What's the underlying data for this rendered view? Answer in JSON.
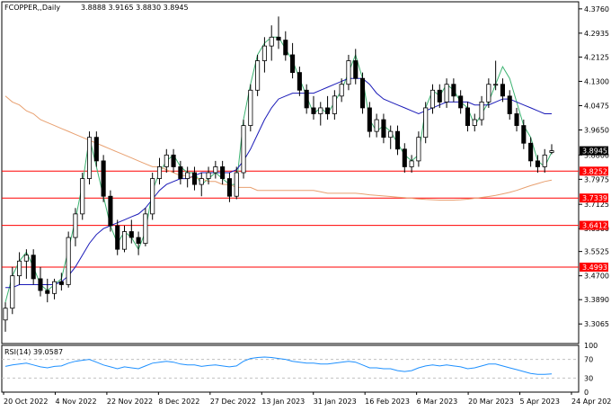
{
  "header": {
    "symbol_label": "FCOPPER,,Daily",
    "ohlc_label": "3.8888 3.9165 3.8830 3.8945"
  },
  "rsi": {
    "label": "RSI(14) 39.0587",
    "ticks": [
      100,
      70,
      30,
      0
    ],
    "levels": [
      70,
      30
    ],
    "color": "#1e90ff"
  },
  "chart_data": {
    "type": "candlestick",
    "title": "",
    "ylim": [
      3.24,
      4.4
    ],
    "y_ticks": [
      "4.3760",
      "4.2935",
      "4.2125",
      "4.1300",
      "4.0475",
      "3.9650",
      "3.8800",
      "3.7975",
      "3.7125",
      "3.6300",
      "3.5525",
      "3.4700",
      "3.3890",
      "3.3065"
    ],
    "x_labels": [
      "20 Oct 2022",
      "4 Nov 2022",
      "22 Nov 2022",
      "8 Dec 2022",
      "27 Dec 2022",
      "13 Jan 2023",
      "31 Jan 2023",
      "16 Feb 2023",
      "6 Mar 2023",
      "20 Mar 2023",
      "5 Apr 2023",
      "24 Apr 2023"
    ],
    "current_price": {
      "value": 3.8945,
      "label": "3.8945"
    },
    "horizontal_levels": [
      {
        "value": 3.8252,
        "label": "3.8252",
        "color": "#ff0000"
      },
      {
        "value": 3.7339,
        "label": "3.7339",
        "color": "#ff0000"
      },
      {
        "value": 3.6412,
        "label": "3.6412",
        "color": "#ff0000"
      },
      {
        "value": 3.4993,
        "label": "3.4993",
        "color": "#ff0000"
      }
    ],
    "series": [
      {
        "values": [
          3.38,
          3.47,
          3.52,
          3.55,
          3.5,
          3.44,
          3.42,
          3.44,
          3.46,
          3.56,
          3.66,
          3.78,
          3.94,
          3.84,
          3.74,
          3.64,
          3.58,
          3.62,
          3.6,
          3.56,
          3.62,
          3.76,
          3.82,
          3.86,
          3.88,
          3.84,
          3.82,
          3.82,
          3.78,
          3.8,
          3.82,
          3.8,
          3.78,
          3.78,
          4.0,
          4.12,
          4.22,
          4.26,
          4.28,
          4.28,
          4.24,
          4.2,
          4.14,
          4.08,
          4.02,
          4.04,
          4.02,
          4.06,
          4.1,
          4.16,
          4.22,
          4.14,
          4.0,
          3.96,
          3.98,
          3.96,
          3.92,
          3.88,
          3.86,
          3.88,
          4.04,
          4.1,
          4.08,
          4.12,
          4.1,
          4.06,
          4.04,
          3.98,
          4.02,
          4.06,
          4.12,
          4.18,
          4.14,
          4.06,
          3.98,
          3.94,
          3.86,
          3.84,
          3.89
        ],
        "color": "#3cb371"
      },
      {
        "values": [
          3.43,
          3.43,
          3.44,
          3.44,
          3.44,
          3.44,
          3.44,
          3.44,
          3.45,
          3.47,
          3.5,
          3.54,
          3.58,
          3.61,
          3.63,
          3.64,
          3.65,
          3.66,
          3.67,
          3.68,
          3.7,
          3.73,
          3.76,
          3.78,
          3.79,
          3.8,
          3.8,
          3.81,
          3.82,
          3.82,
          3.82,
          3.82,
          3.82,
          3.83,
          3.86,
          3.9,
          3.95,
          4.0,
          4.04,
          4.07,
          4.08,
          4.09,
          4.09,
          4.09,
          4.09,
          4.1,
          4.11,
          4.12,
          4.13,
          4.14,
          4.14,
          4.14,
          4.12,
          4.09,
          4.07,
          4.06,
          4.05,
          4.04,
          4.03,
          4.02,
          4.03,
          4.04,
          4.05,
          4.06,
          4.06,
          4.06,
          4.06,
          4.05,
          4.05,
          4.05,
          4.06,
          4.07,
          4.07,
          4.06,
          4.05,
          4.04,
          4.03,
          4.02,
          4.02
        ],
        "color": "#1a1ab8"
      },
      {
        "values": [
          4.08,
          4.06,
          4.05,
          4.03,
          4.02,
          4.0,
          3.99,
          3.98,
          3.97,
          3.96,
          3.95,
          3.94,
          3.93,
          3.92,
          3.91,
          3.9,
          3.89,
          3.88,
          3.87,
          3.86,
          3.85,
          3.84,
          3.84,
          3.83,
          3.82,
          3.81,
          3.81,
          3.8,
          3.8,
          3.79,
          3.79,
          3.78,
          3.78,
          3.77,
          3.77,
          3.77,
          3.76,
          3.76,
          3.76,
          3.76,
          3.76,
          3.76,
          3.76,
          3.76,
          3.76,
          3.755,
          3.75,
          3.75,
          3.75,
          3.75,
          3.75,
          3.748,
          3.745,
          3.743,
          3.741,
          3.739,
          3.737,
          3.735,
          3.733,
          3.731,
          3.729,
          3.728,
          3.727,
          3.727,
          3.727,
          3.728,
          3.73,
          3.733,
          3.736,
          3.739,
          3.743,
          3.748,
          3.753,
          3.76,
          3.768,
          3.776,
          3.783,
          3.79,
          3.795
        ],
        "color": "#e8a070"
      }
    ],
    "candles": [
      [
        3.32,
        3.38,
        3.28,
        3.36
      ],
      [
        3.36,
        3.5,
        3.34,
        3.47
      ],
      [
        3.47,
        3.55,
        3.44,
        3.52
      ],
      [
        3.52,
        3.56,
        3.46,
        3.54
      ],
      [
        3.54,
        3.56,
        3.44,
        3.46
      ],
      [
        3.46,
        3.5,
        3.4,
        3.42
      ],
      [
        3.42,
        3.46,
        3.38,
        3.41
      ],
      [
        3.41,
        3.46,
        3.39,
        3.45
      ],
      [
        3.45,
        3.48,
        3.42,
        3.44
      ],
      [
        3.44,
        3.62,
        3.43,
        3.6
      ],
      [
        3.6,
        3.7,
        3.57,
        3.68
      ],
      [
        3.68,
        3.82,
        3.66,
        3.8
      ],
      [
        3.8,
        3.96,
        3.78,
        3.94
      ],
      [
        3.94,
        3.96,
        3.84,
        3.86
      ],
      [
        3.86,
        3.88,
        3.72,
        3.74
      ],
      [
        3.74,
        3.76,
        3.62,
        3.64
      ],
      [
        3.64,
        3.66,
        3.54,
        3.56
      ],
      [
        3.56,
        3.64,
        3.55,
        3.62
      ],
      [
        3.62,
        3.66,
        3.58,
        3.6
      ],
      [
        3.6,
        3.62,
        3.54,
        3.58
      ],
      [
        3.58,
        3.7,
        3.57,
        3.68
      ],
      [
        3.68,
        3.82,
        3.66,
        3.8
      ],
      [
        3.8,
        3.87,
        3.78,
        3.84
      ],
      [
        3.84,
        3.9,
        3.82,
        3.88
      ],
      [
        3.88,
        3.9,
        3.82,
        3.84
      ],
      [
        3.84,
        3.86,
        3.78,
        3.8
      ],
      [
        3.8,
        3.84,
        3.77,
        3.82
      ],
      [
        3.82,
        3.84,
        3.76,
        3.78
      ],
      [
        3.78,
        3.82,
        3.74,
        3.8
      ],
      [
        3.8,
        3.84,
        3.78,
        3.82
      ],
      [
        3.82,
        3.86,
        3.8,
        3.84
      ],
      [
        3.84,
        3.86,
        3.78,
        3.8
      ],
      [
        3.8,
        3.82,
        3.72,
        3.74
      ],
      [
        3.74,
        3.84,
        3.73,
        3.82
      ],
      [
        3.82,
        4.0,
        3.8,
        3.98
      ],
      [
        3.98,
        4.12,
        3.96,
        4.1
      ],
      [
        4.1,
        4.22,
        4.08,
        4.2
      ],
      [
        4.2,
        4.28,
        4.16,
        4.25
      ],
      [
        4.25,
        4.32,
        4.2,
        4.28
      ],
      [
        4.28,
        4.35,
        4.24,
        4.27
      ],
      [
        4.27,
        4.3,
        4.2,
        4.22
      ],
      [
        4.22,
        4.26,
        4.14,
        4.16
      ],
      [
        4.16,
        4.18,
        4.08,
        4.1
      ],
      [
        4.1,
        4.12,
        4.02,
        4.04
      ],
      [
        4.04,
        4.08,
        4.0,
        4.02
      ],
      [
        4.02,
        4.06,
        3.98,
        4.04
      ],
      [
        4.04,
        4.08,
        4.0,
        4.02
      ],
      [
        4.02,
        4.1,
        4.0,
        4.08
      ],
      [
        4.08,
        4.14,
        4.06,
        4.12
      ],
      [
        4.12,
        4.22,
        4.1,
        4.2
      ],
      [
        4.2,
        4.24,
        4.12,
        4.14
      ],
      [
        4.14,
        4.16,
        4.02,
        4.04
      ],
      [
        4.04,
        4.06,
        3.94,
        3.96
      ],
      [
        3.96,
        4.02,
        3.94,
        4.0
      ],
      [
        4.0,
        4.02,
        3.92,
        3.94
      ],
      [
        3.94,
        3.98,
        3.9,
        3.96
      ],
      [
        3.96,
        3.98,
        3.88,
        3.9
      ],
      [
        3.9,
        3.92,
        3.82,
        3.84
      ],
      [
        3.84,
        3.88,
        3.82,
        3.86
      ],
      [
        3.86,
        3.96,
        3.84,
        3.94
      ],
      [
        3.94,
        4.06,
        3.92,
        4.04
      ],
      [
        4.04,
        4.12,
        4.02,
        4.1
      ],
      [
        4.1,
        4.12,
        4.04,
        4.06
      ],
      [
        4.06,
        4.14,
        4.04,
        4.12
      ],
      [
        4.12,
        4.14,
        4.06,
        4.08
      ],
      [
        4.08,
        4.1,
        4.02,
        4.04
      ],
      [
        4.04,
        4.06,
        3.96,
        3.98
      ],
      [
        3.98,
        4.02,
        3.96,
        4.0
      ],
      [
        4.0,
        4.08,
        3.98,
        4.06
      ],
      [
        4.06,
        4.14,
        4.04,
        4.12
      ],
      [
        4.12,
        4.2,
        4.1,
        4.12
      ],
      [
        4.12,
        4.14,
        4.06,
        4.08
      ],
      [
        4.08,
        4.1,
        4.0,
        4.02
      ],
      [
        4.02,
        4.04,
        3.96,
        3.98
      ],
      [
        3.98,
        4.0,
        3.9,
        3.92
      ],
      [
        3.92,
        3.94,
        3.84,
        3.86
      ],
      [
        3.86,
        3.88,
        3.82,
        3.84
      ],
      [
        3.84,
        3.9,
        3.82,
        3.88
      ],
      [
        3.8888,
        3.9165,
        3.883,
        3.8945
      ]
    ],
    "rsi_values": [
      55,
      58,
      60,
      62,
      58,
      54,
      52,
      55,
      56,
      62,
      66,
      68,
      70,
      64,
      58,
      54,
      50,
      54,
      52,
      50,
      56,
      62,
      64,
      66,
      64,
      60,
      58,
      58,
      55,
      57,
      58,
      56,
      54,
      56,
      66,
      72,
      74,
      75,
      74,
      72,
      70,
      66,
      64,
      62,
      62,
      60,
      60,
      62,
      64,
      66,
      64,
      58,
      52,
      52,
      50,
      50,
      46,
      44,
      46,
      52,
      56,
      58,
      56,
      58,
      56,
      54,
      50,
      52,
      56,
      60,
      60,
      56,
      52,
      48,
      44,
      40,
      38,
      38,
      39
    ]
  }
}
